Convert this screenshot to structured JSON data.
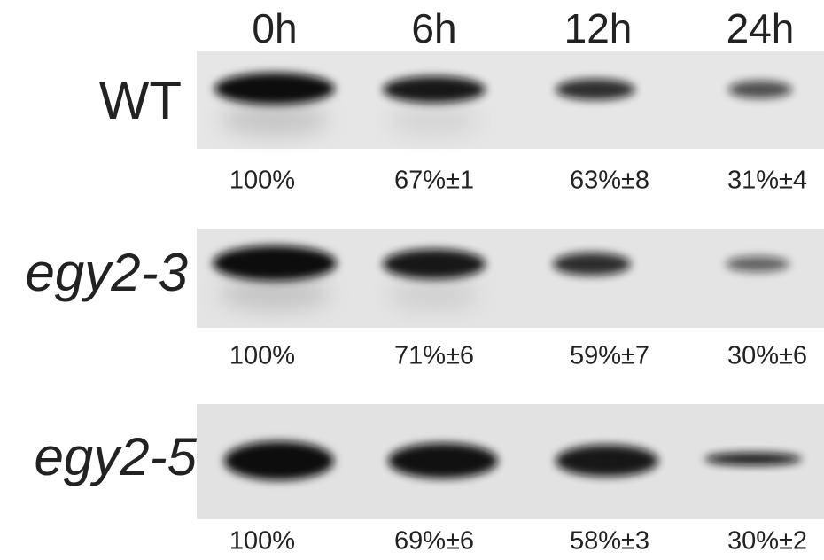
{
  "columns": [
    "0h",
    "6h",
    "12h",
    "24h"
  ],
  "rows": [
    {
      "label": "WT",
      "values": [
        "100%",
        "67%±1",
        "63%±8",
        "31%±4"
      ]
    },
    {
      "label": "egy2-3",
      "values": [
        "100%",
        "71%±6",
        "59%±7",
        "30%±6"
      ]
    },
    {
      "label": "egy2-5",
      "values": [
        "100%",
        "69%±6",
        "58%±3",
        "30%±2"
      ]
    }
  ]
}
